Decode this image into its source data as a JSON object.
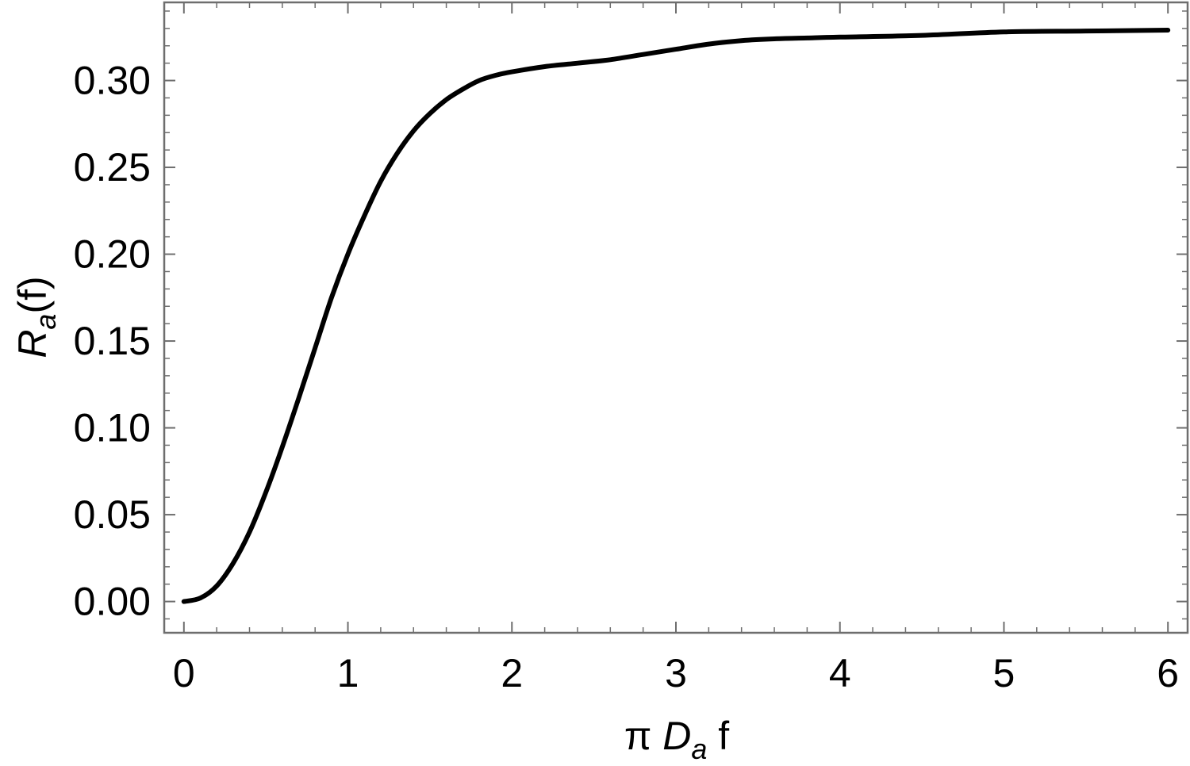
{
  "chart_data": {
    "type": "line",
    "xlim": [
      -0.12,
      6.12
    ],
    "ylim": [
      -0.018,
      0.345
    ],
    "x_ticks": [
      "0",
      "1",
      "2",
      "3",
      "4",
      "5",
      "6"
    ],
    "x_tick_values": [
      0,
      1,
      2,
      3,
      4,
      5,
      6
    ],
    "y_ticks": [
      "0.00",
      "0.05",
      "0.10",
      "0.15",
      "0.20",
      "0.25",
      "0.30"
    ],
    "y_tick_values": [
      0.0,
      0.05,
      0.1,
      0.15,
      0.2,
      0.25,
      0.3
    ],
    "xlabel": {
      "prefix": "π ",
      "italic": "D",
      "sub": "a",
      "suffix": " f"
    },
    "ylabel": {
      "italic": "R",
      "sub": "a",
      "suffix": "(f)"
    },
    "grid": false,
    "series": [
      {
        "color": "#000000",
        "x": [
          0,
          0.1,
          0.2,
          0.3,
          0.4,
          0.5,
          0.6,
          0.7,
          0.8,
          0.9,
          1.0,
          1.1,
          1.2,
          1.3,
          1.4,
          1.5,
          1.6,
          1.7,
          1.8,
          1.9,
          2.0,
          2.2,
          2.4,
          2.6,
          2.8,
          3.0,
          3.2,
          3.4,
          3.6,
          3.8,
          4.0,
          4.5,
          5.0,
          5.5,
          6.0
        ],
        "y": [
          0.0,
          0.002,
          0.009,
          0.022,
          0.04,
          0.063,
          0.089,
          0.117,
          0.146,
          0.175,
          0.2,
          0.222,
          0.242,
          0.258,
          0.271,
          0.281,
          0.289,
          0.295,
          0.3,
          0.303,
          0.305,
          0.308,
          0.31,
          0.312,
          0.315,
          0.318,
          0.321,
          0.323,
          0.324,
          0.3245,
          0.325,
          0.326,
          0.328,
          0.3285,
          0.329
        ]
      }
    ]
  }
}
